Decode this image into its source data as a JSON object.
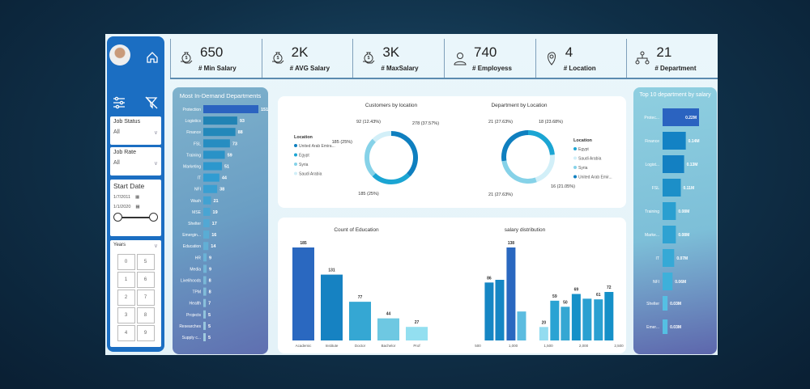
{
  "sidebar": {
    "filters_label": "filters",
    "job_status": {
      "label": "Job Status",
      "value": "All"
    },
    "job_rate": {
      "label": "Job Rate",
      "value": "All"
    },
    "start_date": {
      "label": "Start Date",
      "from": "1/7/2011",
      "to": "1/1/2020"
    },
    "years": {
      "label": "Years",
      "options": [
        "0",
        "5",
        "1",
        "6",
        "2",
        "7",
        "3",
        "8",
        "4",
        "9"
      ]
    }
  },
  "kpis": [
    {
      "value": "650",
      "label": "# Min Salary",
      "icon": "money-bag-hand-icon"
    },
    {
      "value": "2K",
      "label": "# AVG Salary",
      "icon": "money-bag-hand-icon"
    },
    {
      "value": "3K",
      "label": "# MaxSalary",
      "icon": "money-bag-hand-icon"
    },
    {
      "value": "740",
      "label": "# Employess",
      "icon": "employee-icon"
    },
    {
      "value": "4",
      "label": "# Location",
      "icon": "location-pin-icon"
    },
    {
      "value": "21",
      "label": "# Department",
      "icon": "org-chart-icon"
    }
  ],
  "chart_data": [
    {
      "type": "bar",
      "orientation": "horizontal",
      "title": "Most In-Demand Departments",
      "categories": [
        "Protection",
        "Logistics",
        "Finance",
        "FSL",
        "Training",
        "Marketing",
        "IT",
        "NFI",
        "Wash",
        "MSE",
        "Shelter",
        "Emergin...",
        "Education",
        "HR",
        "Media",
        "Livelihoods",
        "TPM",
        "Health",
        "Projects",
        "Researches",
        "Supply c..."
      ],
      "values": [
        151,
        93,
        88,
        73,
        59,
        51,
        44,
        38,
        21,
        19,
        17,
        16,
        14,
        9,
        9,
        8,
        8,
        7,
        5,
        5,
        5
      ]
    },
    {
      "type": "pie",
      "donut": true,
      "title": "Customers by location",
      "legend_title": "Location",
      "categories": [
        "United Arab Emira...",
        "Egypt",
        "Syria",
        "Saudi Arabia"
      ],
      "values": [
        278,
        185,
        185,
        92
      ],
      "labels": [
        "278 (37.57%)",
        "185 (25%)",
        "185 (25%)",
        "92 (12.43%)"
      ],
      "colors": [
        "#0f7fbf",
        "#1ba5d3",
        "#86d2e8",
        "#d2eff8"
      ]
    },
    {
      "type": "pie",
      "donut": true,
      "title": "Department by Location",
      "legend_title": "Location",
      "categories": [
        "Egypt",
        "Saudi Arabia",
        "Syria",
        "United Arab Emir..."
      ],
      "values": [
        18,
        16,
        21,
        21
      ],
      "labels": [
        "18 (23.68%)",
        "16 (21.05%)",
        "21 (27.63%)",
        "21 (27.63%)"
      ],
      "colors": [
        "#1ba5d3",
        "#d2eff8",
        "#86d2e8",
        "#0f7fbf"
      ]
    },
    {
      "type": "bar",
      "title": "Count of Education",
      "categories": [
        "Academic",
        "Institute",
        "Doctor",
        "Bachelor",
        "Prof"
      ],
      "values": [
        185,
        131,
        77,
        44,
        27
      ],
      "colors": [
        "#2a68c0",
        "#1682c2",
        "#35a7d3",
        "#6ec8e2",
        "#93dff0"
      ]
    },
    {
      "type": "bar",
      "title": "salary distribution",
      "x": [
        660,
        810,
        970,
        1120,
        1435,
        1590,
        1740,
        1895,
        2050,
        2210,
        2360
      ],
      "values": [
        86,
        90,
        138,
        43,
        20,
        59,
        50,
        69,
        62,
        61,
        72
      ],
      "data_labels": [
        "86",
        "",
        "138",
        "",
        "20",
        "59",
        "50",
        "69",
        "",
        "61",
        "72"
      ],
      "xlim": [
        500,
        2500
      ],
      "xticks": [
        "500",
        "1,000",
        "1,500",
        "2,000",
        "2,500"
      ]
    },
    {
      "type": "bar",
      "orientation": "horizontal",
      "title": "Top 10 department by salary",
      "categories": [
        "Protec...",
        "Finance",
        "Logist...",
        "FSL",
        "Training",
        "Marke...",
        "IT",
        "NFI",
        "Shelter",
        "Emer..."
      ],
      "values": [
        0.22,
        0.14,
        0.13,
        0.11,
        0.08,
        0.08,
        0.07,
        0.06,
        0.03,
        0.03
      ],
      "labels": [
        "0.22M",
        "0.14M",
        "0.13M",
        "0.11M",
        "0.08M",
        "0.08M",
        "0.07M",
        "0.06M",
        "0.03M",
        "0.03M"
      ]
    }
  ]
}
